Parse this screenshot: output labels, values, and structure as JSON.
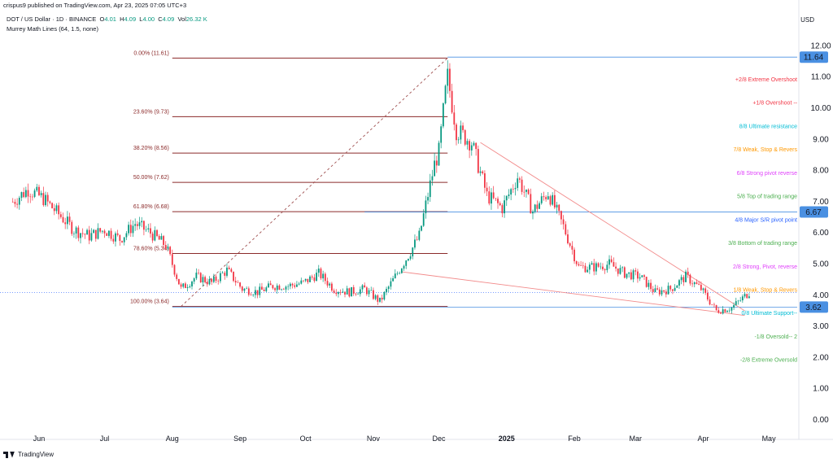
{
  "header": {
    "publisher": "crispus9 published on TradingView.com, Apr 23, 2025 07:05 UTC+3",
    "symbol": "DOT / US Dollar · 1D · BINANCE",
    "open_label": "O",
    "open": "4.01",
    "high_label": "H",
    "high": "4.09",
    "low_label": "L",
    "low": "4.00",
    "close_label": "C",
    "close": "4.09",
    "vol_label": "Vol",
    "volume": "26.32 K",
    "indicator": "Murrey Math Lines (64, 1.5, none)"
  },
  "footer": {
    "brand": "TradingView"
  },
  "colors": {
    "up": "#089981",
    "down": "#f23645",
    "fib": "#8b2a2a",
    "trend": "#f28b8b",
    "accent_blue": "#4a90e2",
    "price_line": "#2962ff"
  },
  "chart_data": {
    "type": "candlestick",
    "currency": "USD",
    "ylim": [
      0,
      12
    ],
    "y_ticks": [
      "12.00",
      "11.00",
      "10.00",
      "9.00",
      "8.00",
      "7.00",
      "6.00",
      "5.00",
      "4.00",
      "3.00",
      "2.00",
      "1.00",
      "0.00"
    ],
    "y_tick_values": [
      12,
      11,
      10,
      9,
      8,
      7,
      6,
      5,
      4,
      3,
      2,
      1,
      0
    ],
    "x_ticks": [
      {
        "label": "Jun",
        "date": "2024-06-01"
      },
      {
        "label": "Jul",
        "date": "2024-07-01"
      },
      {
        "label": "Aug",
        "date": "2024-08-01"
      },
      {
        "label": "Sep",
        "date": "2024-09-01"
      },
      {
        "label": "Oct",
        "date": "2024-10-01"
      },
      {
        "label": "Nov",
        "date": "2024-11-01"
      },
      {
        "label": "Dec",
        "date": "2024-12-01"
      },
      {
        "label": "2025",
        "date": "2025-01-01",
        "bold": true
      },
      {
        "label": "Feb",
        "date": "2025-02-01"
      },
      {
        "label": "Mar",
        "date": "2025-03-01"
      },
      {
        "label": "Apr",
        "date": "2025-04-01"
      },
      {
        "label": "May",
        "date": "2025-05-01"
      }
    ],
    "price_path": [
      [
        "2024-05-20",
        7.0
      ],
      [
        "2024-05-27",
        7.4
      ],
      [
        "2024-06-03",
        7.1
      ],
      [
        "2024-06-10",
        6.6
      ],
      [
        "2024-06-17",
        6.1
      ],
      [
        "2024-06-24",
        5.9
      ],
      [
        "2024-07-01",
        6.1
      ],
      [
        "2024-07-08",
        5.8
      ],
      [
        "2024-07-15",
        6.3
      ],
      [
        "2024-07-22",
        6.0
      ],
      [
        "2024-07-29",
        5.6
      ],
      [
        "2024-08-05",
        4.2
      ],
      [
        "2024-08-12",
        4.6
      ],
      [
        "2024-08-19",
        4.4
      ],
      [
        "2024-08-26",
        4.8
      ],
      [
        "2024-09-02",
        4.2
      ],
      [
        "2024-09-09",
        4.1
      ],
      [
        "2024-09-16",
        4.3
      ],
      [
        "2024-09-23",
        4.3
      ],
      [
        "2024-09-30",
        4.4
      ],
      [
        "2024-10-07",
        4.7
      ],
      [
        "2024-10-14",
        4.2
      ],
      [
        "2024-10-21",
        4.1
      ],
      [
        "2024-10-28",
        4.2
      ],
      [
        "2024-11-04",
        3.8
      ],
      [
        "2024-11-11",
        4.6
      ],
      [
        "2024-11-18",
        5.4
      ],
      [
        "2024-11-22",
        5.9
      ],
      [
        "2024-11-25",
        6.9
      ],
      [
        "2024-11-29",
        8.2
      ],
      [
        "2024-12-01",
        8.6
      ],
      [
        "2024-12-04",
        10.5
      ],
      [
        "2024-12-05",
        11.0
      ],
      [
        "2024-12-09",
        9.3
      ],
      [
        "2024-12-16",
        8.9
      ],
      [
        "2024-12-23",
        7.2
      ],
      [
        "2024-12-30",
        6.8
      ],
      [
        "2025-01-06",
        7.8
      ],
      [
        "2025-01-13",
        6.7
      ],
      [
        "2025-01-20",
        7.3
      ],
      [
        "2025-01-27",
        6.2
      ],
      [
        "2025-02-03",
        4.9
      ],
      [
        "2025-02-10",
        4.9
      ],
      [
        "2025-02-17",
        5.0
      ],
      [
        "2025-02-24",
        4.7
      ],
      [
        "2025-03-03",
        4.6
      ],
      [
        "2025-03-10",
        4.1
      ],
      [
        "2025-03-17",
        4.2
      ],
      [
        "2025-03-24",
        4.6
      ],
      [
        "2025-03-31",
        4.2
      ],
      [
        "2025-04-07",
        3.5
      ],
      [
        "2025-04-14",
        3.6
      ],
      [
        "2025-04-22",
        4.09
      ]
    ],
    "fib_levels": [
      {
        "label": "0.00% (11.61)",
        "value": 11.61
      },
      {
        "label": "23.60% (9.73)",
        "value": 9.73
      },
      {
        "label": "38.20% (8.56)",
        "value": 8.56
      },
      {
        "label": "50.00% (7.62)",
        "value": 7.62
      },
      {
        "label": "61.80% (6.68)",
        "value": 6.68
      },
      {
        "label": "78.60% (5.34)",
        "value": 5.34
      },
      {
        "label": "100.00% (3.64)",
        "value": 3.64
      }
    ],
    "murrey_labels": [
      {
        "label": "+2/8 Extreme Overshoot",
        "value": 10.94,
        "color": "#f23645"
      },
      {
        "label": "+1/8 Overshoot --",
        "value": 10.19,
        "color": "#f23645"
      },
      {
        "label": "8/8 Ultimate resistance",
        "value": 9.44,
        "color": "#00bcd4"
      },
      {
        "label": "7/8 Weak, Stop & Revers",
        "value": 8.69,
        "color": "#ff9800"
      },
      {
        "label": "6/8 Strong pivot reverse",
        "value": 7.94,
        "color": "#e040fb"
      },
      {
        "label": "5/8 Top of trading range",
        "value": 7.19,
        "color": "#4caf50"
      },
      {
        "label": "4/8 Major S/R pivot point",
        "value": 6.44,
        "color": "#2962ff"
      },
      {
        "label": "3/8 Bottom of trading range",
        "value": 5.69,
        "color": "#4caf50"
      },
      {
        "label": "2/8 Strong, Pivot, reverse",
        "value": 4.94,
        "color": "#e040fb"
      },
      {
        "label": "1/8 Weak, Stop & Revers",
        "value": 4.19,
        "color": "#ff9800"
      },
      {
        "label": "0/8 Ultimate Support--",
        "value": 3.44,
        "color": "#00bcd4"
      },
      {
        "label": "-1/8 Oversold-- 2",
        "value": 2.69,
        "color": "#4caf50"
      },
      {
        "label": "-2/8 Extreme Oversold",
        "value": 1.94,
        "color": "#4caf50"
      }
    ],
    "horizontal_lines": [
      {
        "label": "11.64",
        "value": 11.64
      },
      {
        "label": "6.67",
        "value": 6.67
      },
      {
        "label": "3.62",
        "value": 3.62
      }
    ],
    "current_price": 4.09,
    "trendlines": [
      {
        "from": [
          "2024-08-05",
          3.64
        ],
        "to": [
          "2024-12-05",
          11.61
        ],
        "style": "dashed"
      },
      {
        "from": [
          "2024-12-20",
          8.9
        ],
        "to": [
          "2025-04-20",
          3.5
        ],
        "style": "solid"
      },
      {
        "from": [
          "2024-11-14",
          4.75
        ],
        "to": [
          "2025-04-20",
          3.35
        ],
        "style": "solid"
      }
    ]
  }
}
